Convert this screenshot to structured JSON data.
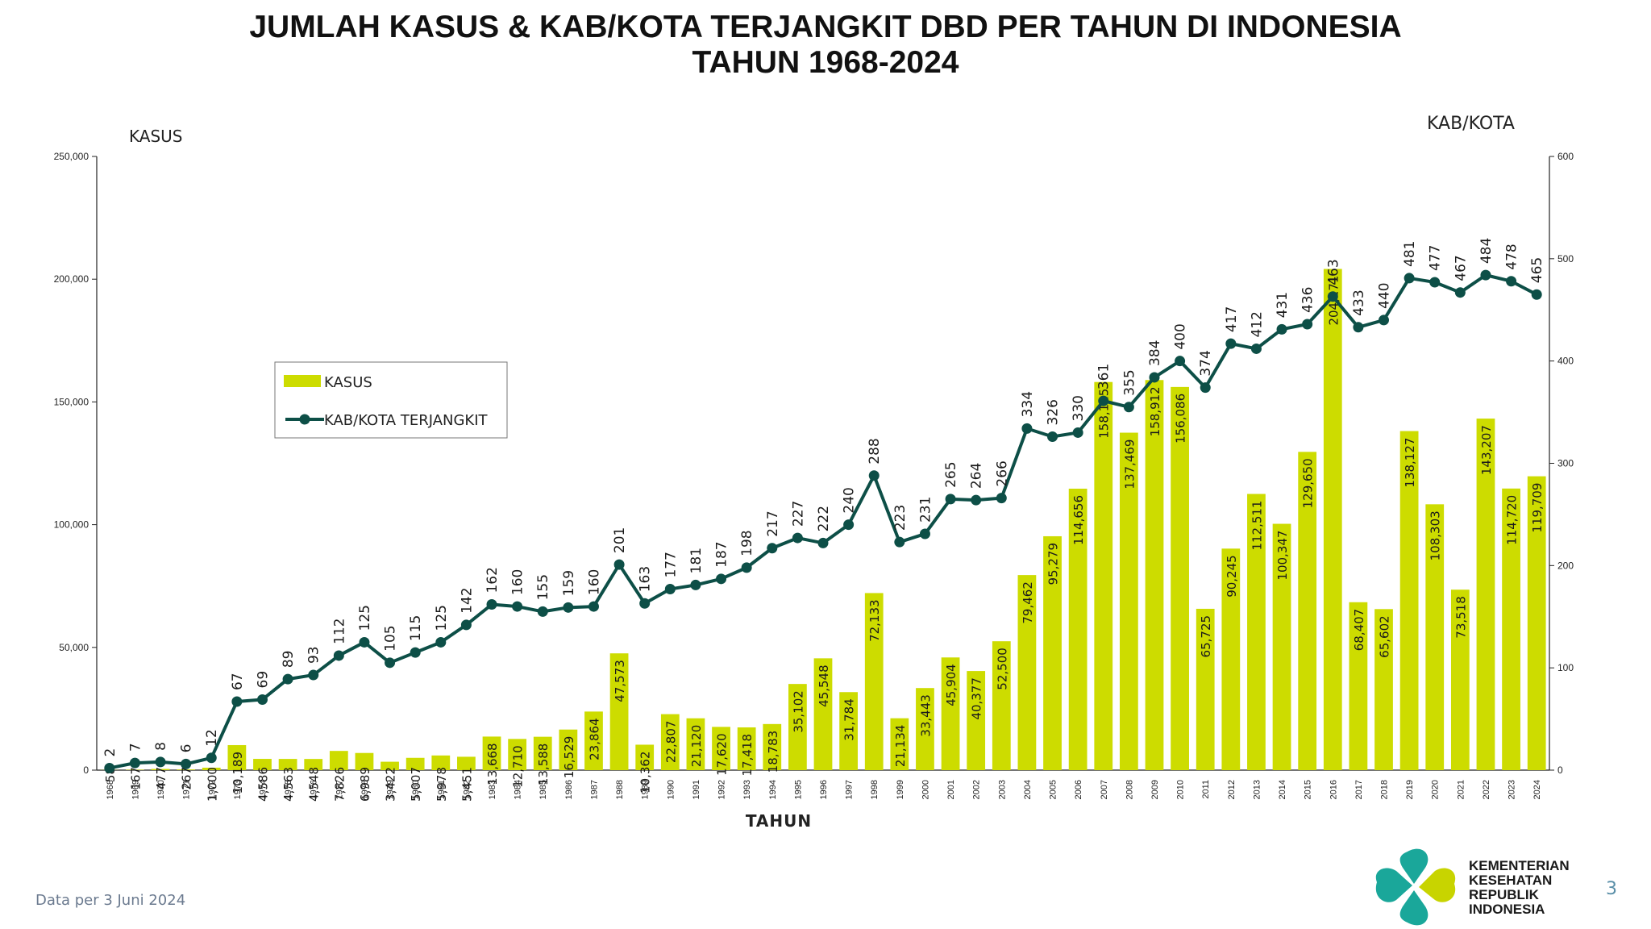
{
  "chart_data": {
    "type": "bar+line",
    "title_line1": "JUMLAH KASUS & KAB/KOTA TERJANGKIT DBD PER TAHUN DI INDONESIA",
    "title_line2": "TAHUN 1968-2024",
    "xlabel": "TAHUN",
    "ylabel_left": "KASUS",
    "ylabel_right": "KAB/KOTA",
    "ylim_left": [
      0,
      250000
    ],
    "ylim_right": [
      0,
      600
    ],
    "yticks_left": [
      "0",
      "50,000",
      "100,000",
      "150,000",
      "200,000",
      "250,000"
    ],
    "yticks_right": [
      "0",
      "100",
      "200",
      "300",
      "400",
      "500",
      "600"
    ],
    "legend": {
      "placement": "left-middle",
      "bar_label": "KASUS",
      "line_label": "KAB/KOTA TERJANGKIT"
    },
    "categories": [
      "1968",
      "1969",
      "1970",
      "1971",
      "1972",
      "1973",
      "1974",
      "1975",
      "1976",
      "1977",
      "1978",
      "1979",
      "1980",
      "1981",
      "1982",
      "1983",
      "1984",
      "1985",
      "1986",
      "1987",
      "1988",
      "1989",
      "1990",
      "1991",
      "1992",
      "1993",
      "1994",
      "1995",
      "1996",
      "1997",
      "1998",
      "1999",
      "2000",
      "2001",
      "2002",
      "2003",
      "2004",
      "2005",
      "2006",
      "2007",
      "2008",
      "2009",
      "2010",
      "2011",
      "2012",
      "2013",
      "2014",
      "2015",
      "2016",
      "2017",
      "2018",
      "2019",
      "2020",
      "2021",
      "2022",
      "2023",
      "2024"
    ],
    "series": [
      {
        "name": "KASUS",
        "type": "bar",
        "axis": "left",
        "values": [
          58,
          167,
          477,
          267,
          1000,
          10189,
          4586,
          4563,
          4548,
          7826,
          6989,
          3422,
          5007,
          5978,
          5451,
          13668,
          12710,
          13588,
          16529,
          23864,
          47573,
          10362,
          22807,
          21120,
          17620,
          17418,
          18783,
          35102,
          45548,
          31784,
          72133,
          21134,
          33443,
          45904,
          40377,
          52500,
          79462,
          95279,
          114656,
          158115,
          137469,
          158912,
          156086,
          65725,
          90245,
          112511,
          100347,
          129650,
          204171,
          68407,
          65602,
          138127,
          108303,
          73518,
          143207,
          114720,
          119709
        ],
        "labels": [
          "58",
          "167",
          "477",
          "267",
          "1,000",
          "10,189",
          "4,586",
          "4,563",
          "4,548",
          "7,826",
          "6,989",
          "3,422",
          "5,007",
          "5,978",
          "5,451",
          "13,668",
          "12,710",
          "13,588",
          "16,529",
          "23,864",
          "47,573",
          "10,362",
          "22,807",
          "21,120",
          "17,620",
          "17,418",
          "18,783",
          "35,102",
          "45,548",
          "31,784",
          "72,133",
          "21,134",
          "33,443",
          "45,904",
          "40,377",
          "52,500",
          "79,462",
          "95,279",
          "114,656",
          "158,115",
          "137,469",
          "158,912",
          "156,086",
          "65,725",
          "90,245",
          "112,511",
          "100,347",
          "129,650",
          "204,171",
          "68,407",
          "65,602",
          "138,127",
          "108,303",
          "73,518",
          "143,207",
          "114,720",
          "119,709"
        ]
      },
      {
        "name": "KAB/KOTA TERJANGKIT",
        "type": "line",
        "axis": "right",
        "values": [
          2,
          7,
          8,
          6,
          12,
          67,
          69,
          89,
          93,
          112,
          125,
          105,
          115,
          125,
          142,
          162,
          160,
          155,
          159,
          160,
          201,
          163,
          177,
          181,
          187,
          198,
          217,
          227,
          222,
          240,
          288,
          223,
          231,
          265,
          264,
          266,
          334,
          326,
          330,
          361,
          355,
          384,
          400,
          374,
          417,
          412,
          431,
          436,
          463,
          433,
          440,
          481,
          477,
          467,
          484,
          478,
          465
        ],
        "labels": [
          "2",
          "7",
          "8",
          "6",
          "12",
          "67",
          "69",
          "89",
          "93",
          "112",
          "125",
          "105",
          "115",
          "125",
          "142",
          "162",
          "160",
          "155",
          "159",
          "160",
          "201",
          "163",
          "177",
          "181",
          "187",
          "198",
          "217",
          "227",
          "222",
          "240",
          "288",
          "223",
          "231",
          "265",
          "264",
          "266",
          "334",
          "326",
          "330",
          "361",
          "355",
          "384",
          "400",
          "374",
          "417",
          "412",
          "431",
          "436",
          "463",
          "433",
          "440",
          "481",
          "477",
          "467",
          "484",
          "478",
          "465"
        ]
      }
    ],
    "colors": {
      "bar": "#cddc00",
      "line": "#0d4f47",
      "axis": "#222222"
    }
  },
  "footer": {
    "note": "Data per 3 Juni 2024",
    "page": "3",
    "logo_lines": [
      "KEMENTERIAN",
      "KESEHATAN",
      "REPUBLIK",
      "INDONESIA"
    ]
  },
  "logo_icon": "kemenkes-logo-icon"
}
